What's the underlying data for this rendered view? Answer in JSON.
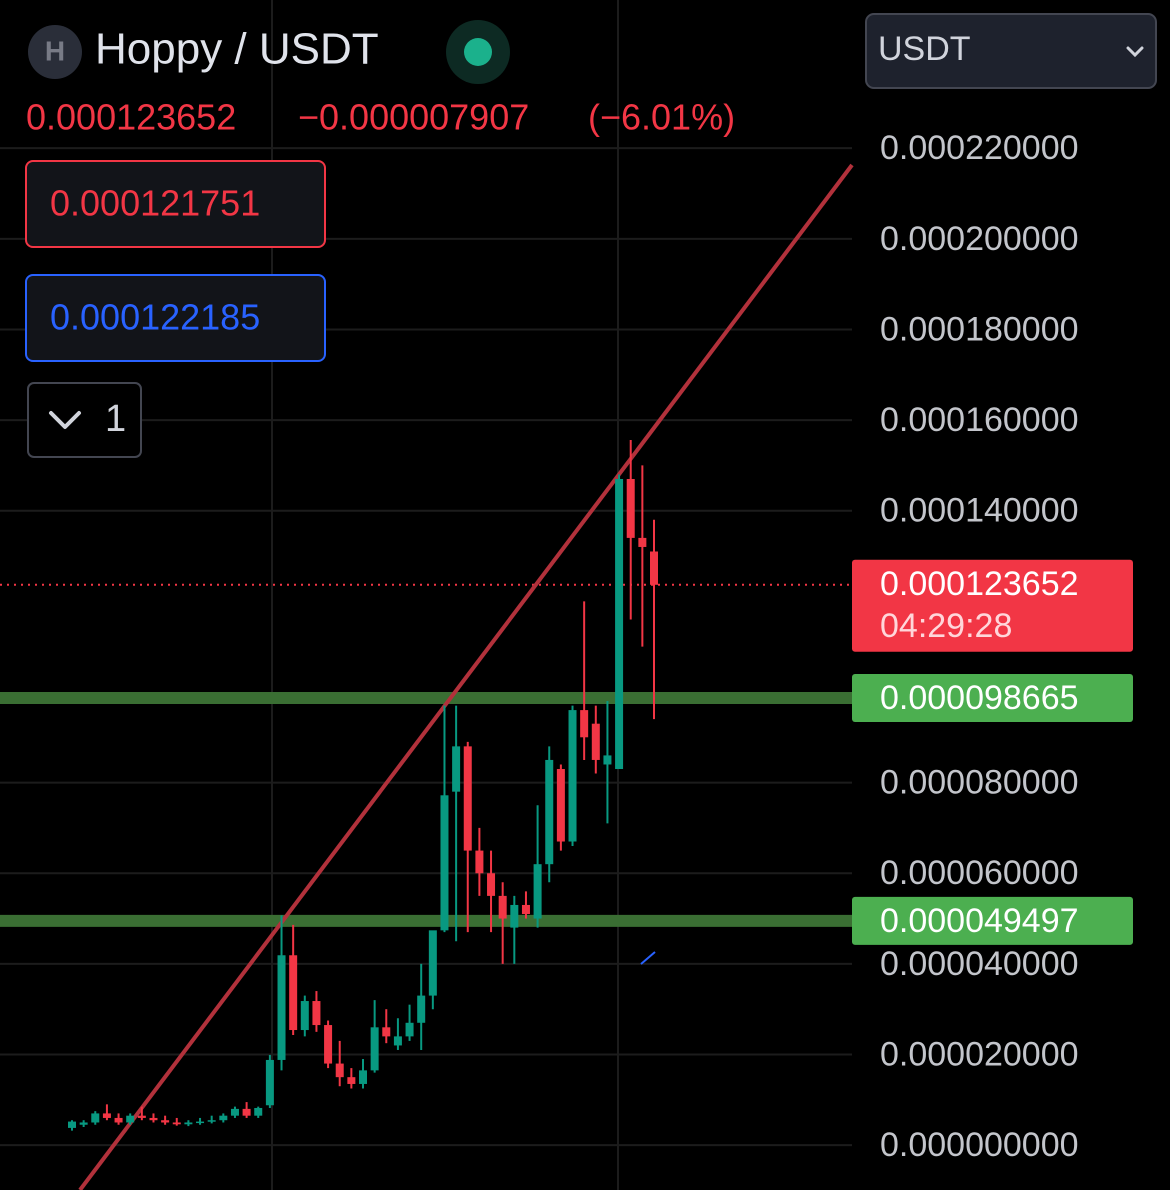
{
  "header": {
    "icon": "H",
    "title": "Hoppy / USDT",
    "last": "0.000123652",
    "change": "−0.000007907",
    "change_pct": "(−6.01%)"
  },
  "sell_price": "0.000121751",
  "buy_price": "0.000122185",
  "indicator_count": "1",
  "currency_select": "USDT",
  "chart_data": {
    "type": "candlestick",
    "up_color": "#089981",
    "down_color": "#f23645",
    "open": [
      3.8e-06,
      4.5e-06,
      5e-06,
      7e-06,
      6e-06,
      5e-06,
      6.5e-06,
      6e-06,
      5.5e-06,
      5e-06,
      4.6e-06,
      5e-06,
      5.2e-06,
      5.5e-06,
      6.5e-06,
      8e-06,
      6.5e-06,
      8.8e-06,
      1.88e-05,
      4.19e-05,
      2.54e-05,
      3.18e-05,
      2.65e-05,
      1.8e-05,
      1.5e-05,
      1.35e-05,
      1.65e-05,
      2.6e-05,
      2.2e-05,
      2.4e-05,
      2.7e-05,
      3.3e-05,
      4.74e-05,
      7.8e-05,
      8.8e-05,
      6.5e-05,
      6e-05,
      5.5e-05,
      4.8e-05,
      5.3e-05,
      5e-05,
      6.2e-05,
      8.3e-05,
      6.7e-05,
      9.6e-05,
      9.3e-05,
      8.4e-05,
      8.3e-05,
      0.000147,
      0.000134,
      0.000131
    ],
    "high": [
      5.5e-06,
      5.5e-06,
      7.5e-06,
      9e-06,
      7e-06,
      7e-06,
      8.5e-06,
      7e-06,
      6.5e-06,
      6e-06,
      5.5e-06,
      6e-06,
      6.5e-06,
      7e-06,
      8.5e-06,
      9.5e-06,
      8.5e-06,
      1.99e-05,
      5.07e-05,
      4.86e-05,
      3.3e-05,
      3.4e-05,
      2.75e-05,
      2.3e-05,
      1.7e-05,
      1.9e-05,
      3.2e-05,
      3e-05,
      2.8e-05,
      3.1e-05,
      4e-05,
      4.7e-05,
      9.7e-05,
      9.7e-05,
      8.9e-05,
      7e-05,
      6.5e-05,
      5.8e-05,
      5.5e-05,
      5.6e-05,
      7.5e-05,
      8.8e-05,
      8.4e-05,
      9.7e-05,
      0.00012,
      9.7e-05,
      9.8e-05,
      0.000148,
      0.0001556,
      0.00015,
      0.000138
    ],
    "low": [
      3.2e-06,
      4e-06,
      4.5e-06,
      5.5e-06,
      4.5e-06,
      4.5e-06,
      5.5e-06,
      5e-06,
      4.5e-06,
      4.3e-06,
      4.2e-06,
      4.5e-06,
      4.8e-06,
      5e-06,
      6e-06,
      6e-06,
      6e-06,
      8.2e-06,
      1.65e-05,
      2.43e-05,
      2.4e-05,
      2.5e-05,
      1.7e-05,
      1.3e-05,
      1.25e-05,
      1.25e-05,
      1.6e-05,
      2.25e-05,
      2.1e-05,
      2.3e-05,
      2.1e-05,
      3e-05,
      4.7e-05,
      4.5e-05,
      4.7e-05,
      5.5e-05,
      4.7e-05,
      4e-05,
      4e-05,
      5e-05,
      4.8e-05,
      5.8e-05,
      6.5e-05,
      6.6e-05,
      8.5e-05,
      8.2e-05,
      7.1e-05,
      8.3e-05,
      0.000116,
      0.00011,
      9.4e-05
    ],
    "close": [
      5.2e-06,
      5e-06,
      7e-06,
      6e-06,
      5e-06,
      6.5e-06,
      6e-06,
      5.5e-06,
      5e-06,
      4.6e-06,
      5e-06,
      5.2e-06,
      5.5e-06,
      6.5e-06,
      8e-06,
      6.5e-06,
      8.2e-06,
      1.88e-05,
      4.19e-05,
      2.54e-05,
      3.18e-05,
      2.65e-05,
      1.8e-05,
      1.5e-05,
      1.35e-05,
      1.65e-05,
      2.6e-05,
      2.4e-05,
      2.4e-05,
      2.7e-05,
      3.3e-05,
      4.74e-05,
      7.72e-05,
      8.8e-05,
      6.5e-05,
      6e-05,
      5.5e-05,
      5e-05,
      5.3e-05,
      5.1e-05,
      6.2e-05,
      8.5e-05,
      6.7e-05,
      9.6e-05,
      9e-05,
      8.5e-05,
      8.6e-05,
      0.000147,
      0.000134,
      0.000132,
      0.000123652
    ],
    "ylim": [
      -9.9e-06,
      0.0002527
    ],
    "yticks": [
      {
        "value": 0,
        "label": "0.000000000"
      },
      {
        "value": 2e-05,
        "label": "0.000020000"
      },
      {
        "value": 4e-05,
        "label": "0.000040000"
      },
      {
        "value": 6e-05,
        "label": "0.000060000"
      },
      {
        "value": 8e-05,
        "label": "0.000080000"
      },
      {
        "value": 0.00014,
        "label": "0.000140000"
      },
      {
        "value": 0.00016,
        "label": "0.000160000"
      },
      {
        "value": 0.00018,
        "label": "0.000180000"
      },
      {
        "value": 0.0002,
        "label": "0.000200000"
      },
      {
        "value": 0.00022,
        "label": "0.000220000"
      }
    ],
    "grid": true,
    "last_price": {
      "value": 0.000123652,
      "countdown": "04:29:28",
      "color": "#f23645"
    },
    "levels": [
      {
        "value": 9.8665e-05,
        "color": "#4caf50"
      },
      {
        "value": 4.9497e-05,
        "color": "#4caf50"
      }
    ]
  }
}
